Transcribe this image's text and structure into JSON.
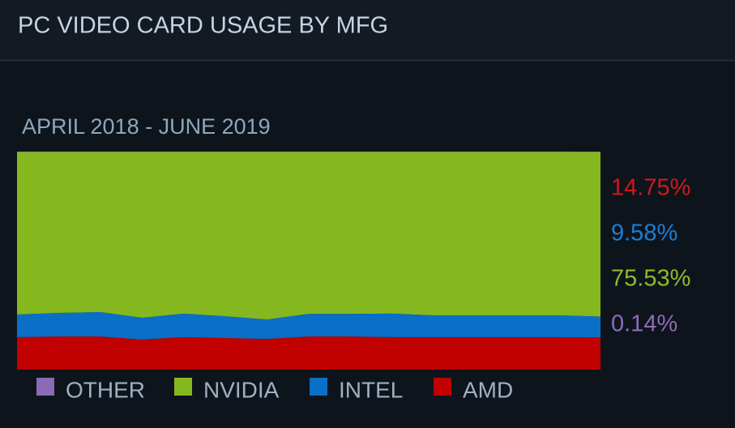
{
  "chart_data": {
    "type": "stacked-area",
    "title": "PC VIDEO CARD USAGE BY MFG",
    "subtitle": "APRIL 2018 - JUNE 2019",
    "categories": [
      null,
      null,
      null,
      null,
      null,
      null,
      null,
      null,
      null,
      null,
      null,
      null,
      null,
      null,
      null
    ],
    "ylim": [
      0,
      100
    ],
    "series": [
      {
        "name": "AMD",
        "color": "#c10000",
        "label_color": "#cc1a1a",
        "values": [
          14.9,
          15.2,
          15.2,
          13.8,
          14.9,
          14.5,
          14.1,
          15.2,
          15.2,
          14.9,
          14.9,
          14.9,
          14.9,
          14.9,
          14.75
        ],
        "value_labels": [
          null,
          null,
          null,
          null,
          null,
          null,
          null,
          null,
          null,
          null,
          null,
          null,
          null,
          null,
          "14.75%"
        ]
      },
      {
        "name": "INTEL",
        "color": "#0a6fc6",
        "label_color": "#1a7fd6",
        "values": [
          10.4,
          10.8,
          11.2,
          10.0,
          10.8,
          10.0,
          8.9,
          10.4,
          10.4,
          10.8,
          10.0,
          10.0,
          10.0,
          10.0,
          9.58
        ],
        "value_labels": [
          null,
          null,
          null,
          null,
          null,
          null,
          null,
          null,
          null,
          null,
          null,
          null,
          null,
          null,
          "9.58%"
        ]
      },
      {
        "name": "NVIDIA",
        "color": "#85b81e",
        "label_color": "#8dbb2a",
        "values": [
          74.5,
          73.8,
          73.4,
          76.0,
          74.1,
          75.3,
          76.8,
          74.2,
          74.2,
          74.1,
          74.9,
          74.9,
          74.9,
          74.9,
          75.53
        ],
        "value_labels": [
          null,
          null,
          null,
          null,
          null,
          null,
          null,
          null,
          null,
          null,
          null,
          null,
          null,
          null,
          "75.53%"
        ]
      },
      {
        "name": "OTHER",
        "color": "#8b6ab5",
        "label_color": "#8b6cb5",
        "values": [
          0.2,
          0.2,
          0.2,
          0.2,
          0.2,
          0.2,
          0.2,
          0.2,
          0.2,
          0.2,
          0.2,
          0.2,
          0.2,
          0.2,
          0.14
        ],
        "value_labels": [
          null,
          null,
          null,
          null,
          null,
          null,
          null,
          null,
          null,
          null,
          null,
          null,
          null,
          null,
          "0.14%"
        ]
      }
    ]
  }
}
